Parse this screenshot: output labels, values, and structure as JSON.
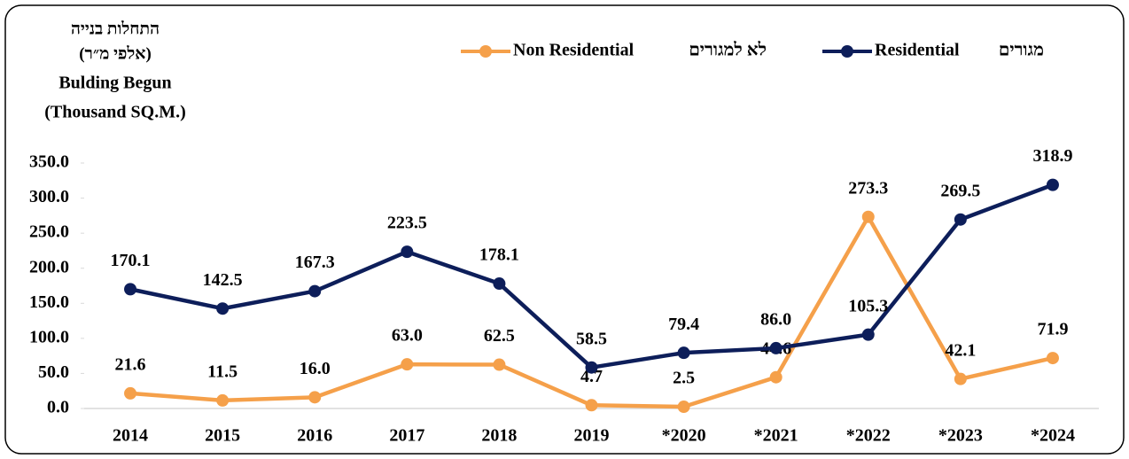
{
  "chart_data": {
    "type": "line",
    "title_lines": [
      "התחלות בנייה",
      "(אלפי מ״ר)",
      "Bulding Begun",
      "(Thousand SQ.M.)"
    ],
    "categories": [
      "2014",
      "2015",
      "2016",
      "2017",
      "2018",
      "2019",
      "*2020",
      "*2021",
      "*2022",
      "*2023",
      "*2024"
    ],
    "series": [
      {
        "name": "Non Residential",
        "name_he": "לא למגורים",
        "color": "#f5a04a",
        "values": [
          21.6,
          11.5,
          16.0,
          63.0,
          62.5,
          4.7,
          2.5,
          44.6,
          273.3,
          42.1,
          71.9
        ],
        "value_labels": [
          "21.6",
          "11.5",
          "16.0",
          "63.0",
          "62.5",
          "4.7",
          "2.5",
          "44.6",
          "273.3",
          "42.1",
          "71.9"
        ]
      },
      {
        "name": "Residential",
        "name_he": "מגורים",
        "color": "#0d1e5a",
        "values": [
          170.1,
          142.5,
          167.3,
          223.5,
          178.1,
          58.5,
          79.4,
          86.0,
          105.3,
          269.5,
          318.9
        ],
        "value_labels": [
          "170.1",
          "142.5",
          "167.3",
          "223.5",
          "178.1",
          "58.5",
          "79.4",
          "86.0",
          "105.3",
          "269.5",
          "318.9"
        ]
      }
    ],
    "ylim": [
      0,
      350
    ],
    "yticks": [
      {
        "value": 0,
        "label": "0.0"
      },
      {
        "value": 50,
        "label": "50.0"
      },
      {
        "value": 100,
        "label": "100.0"
      },
      {
        "value": 150,
        "label": "150.0"
      },
      {
        "value": 200,
        "label": "200.0"
      },
      {
        "value": 250,
        "label": "250.0"
      },
      {
        "value": 300,
        "label": "300.0"
      },
      {
        "value": 350,
        "label": "350.0"
      }
    ],
    "grid": false,
    "legend": "top"
  }
}
